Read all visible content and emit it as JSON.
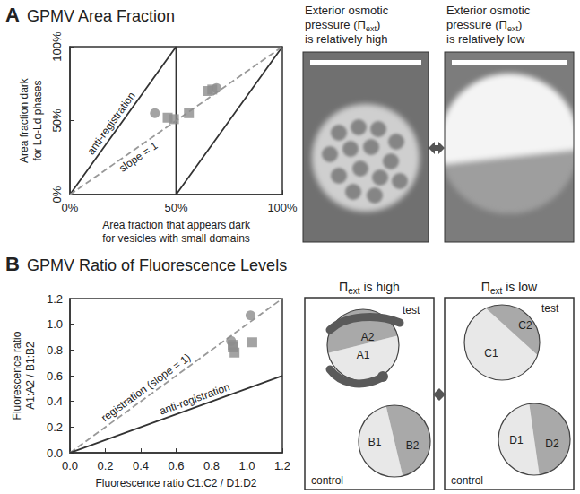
{
  "chart_data": [
    {
      "panel": "A",
      "type": "scatter",
      "title": "GPMV Area Fraction",
      "x_label": "Area fraction that appears dark for vesicles with small domains",
      "y_label": "Area fraction dark for Lo-Ld phases",
      "xlim": [
        0,
        100
      ],
      "ylim": [
        0,
        100
      ],
      "xticks": [
        {
          "value": 0,
          "label": "0%"
        },
        {
          "value": 50,
          "label": "50%"
        },
        {
          "value": 100,
          "label": "100%"
        }
      ],
      "yticks": [
        {
          "value": 0,
          "label": "0%"
        },
        {
          "value": 50,
          "label": "50%"
        },
        {
          "value": 100,
          "label": "100%"
        }
      ],
      "grid": false,
      "series": [
        {
          "name": "anti-registration",
          "type": "line",
          "line_style": "solid",
          "color": "#333333",
          "x": [
            0,
            50,
            50,
            100
          ],
          "values": [
            0,
            100,
            0,
            100
          ]
        },
        {
          "name": "slope = 1",
          "type": "line",
          "line_style": "dashed",
          "color": "#999999",
          "x": [
            0,
            100
          ],
          "values": [
            0,
            100
          ]
        },
        {
          "marker": "circle",
          "color": "#8c8c8c",
          "x": [
            40,
            69
          ],
          "values": [
            55,
            72
          ]
        },
        {
          "marker": "square",
          "color": "#8c8c8c",
          "x": [
            46,
            49,
            56,
            65,
            67
          ],
          "values": [
            52,
            51,
            55,
            70,
            71
          ]
        }
      ]
    },
    {
      "panel": "B",
      "type": "scatter",
      "title": "GPMV Ratio of Fluorescence Levels",
      "x_label": "Fluorescence ratio C1:C2 / D1:D2",
      "y_label": "Fluorescence ratio A1:A2 / B1:B2",
      "xlim": [
        0,
        1.2
      ],
      "ylim": [
        0,
        1.2
      ],
      "xticks": [
        {
          "value": 0,
          "label": "0.0"
        },
        0.2,
        0.4,
        0.6,
        0.8,
        {
          "value": 1,
          "label": "1.0"
        },
        1.2
      ],
      "yticks": [
        {
          "value": 0,
          "label": "0.0"
        },
        0.2,
        0.4,
        0.6,
        0.8,
        {
          "value": 1,
          "label": "1.0"
        },
        1.2
      ],
      "grid": false,
      "series": [
        {
          "name": "registration (slope = 1)",
          "type": "line",
          "line_style": "dashed",
          "color": "#999999",
          "x": [
            0,
            1.2
          ],
          "values": [
            0,
            1.2
          ]
        },
        {
          "name": "anti-registration",
          "type": "line",
          "line_style": "solid",
          "color": "#333333",
          "x": [
            0,
            1.2
          ],
          "values": [
            0,
            0.6
          ]
        },
        {
          "marker": "circle",
          "color": "#8c8c8c",
          "x": [
            0.91,
            1.02
          ],
          "values": [
            0.87,
            1.07
          ]
        },
        {
          "marker": "square",
          "color": "#8c8c8c",
          "x": [
            0.92,
            0.92,
            0.93,
            1.03
          ],
          "values": [
            0.84,
            0.82,
            0.78,
            0.86
          ]
        }
      ]
    }
  ],
  "images": [
    {
      "caption": [
        [
          {
            "text": "Exterior osmotic"
          }
        ],
        [
          {
            "text": "pressure (Π"
          },
          {
            "text": "ext",
            "subscript": true
          },
          {
            "text": ")"
          }
        ],
        [
          {
            "text": "is relatively high"
          }
        ]
      ]
    },
    {
      "caption": [
        [
          {
            "text": "Exterior osmotic"
          }
        ],
        [
          {
            "text": "pressure (Π"
          },
          {
            "text": "ext",
            "subscript": true
          },
          {
            "text": ")"
          }
        ],
        [
          {
            "text": "is relatively low"
          }
        ]
      ]
    }
  ],
  "diagrams": [
    {
      "header": [
        {
          "text": "Π"
        },
        {
          "text": "ext",
          "subscript": true
        },
        {
          "text": " is high"
        }
      ],
      "test": {
        "label": "test",
        "regions": [
          "A1",
          "A2"
        ]
      },
      "control": {
        "label": "control",
        "regions": [
          "B1",
          "B2"
        ]
      }
    },
    {
      "header": [
        {
          "text": "Π"
        },
        {
          "text": "ext",
          "subscript": true
        },
        {
          "text": " is low"
        }
      ],
      "test": {
        "label": "test",
        "regions": [
          "C1",
          "C2"
        ]
      },
      "control": {
        "label": "control",
        "regions": [
          "D1",
          "D2"
        ]
      }
    }
  ]
}
